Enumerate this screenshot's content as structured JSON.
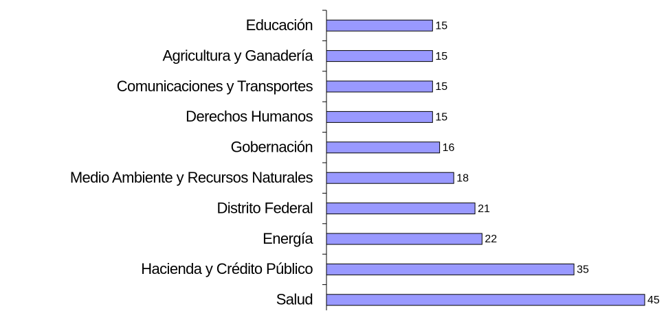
{
  "chart_data": {
    "type": "bar",
    "orientation": "horizontal",
    "categories": [
      "Educación",
      "Agricultura y Ganadería",
      "Comunicaciones y Transportes",
      "Derechos Humanos",
      "Gobernación",
      "Medio Ambiente y Recursos Naturales",
      "Distrito Federal",
      "Energía",
      "Hacienda y Crédito Público",
      "Salud"
    ],
    "values": [
      15,
      15,
      15,
      15,
      16,
      18,
      21,
      22,
      35,
      45
    ],
    "color": "#9999ff",
    "xlim": [
      0,
      45
    ]
  }
}
